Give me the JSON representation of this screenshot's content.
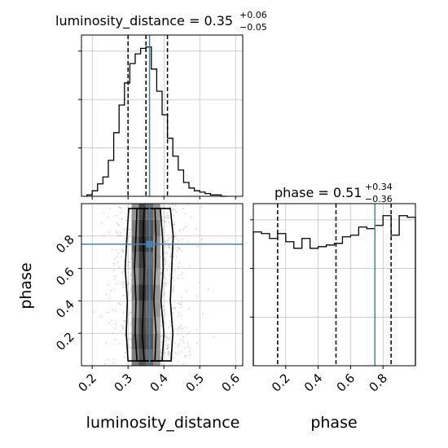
{
  "chart_data": {
    "type": "corner",
    "colors": {
      "truth": "#4682b4",
      "line": "#000000",
      "grid": "#b0b0b0",
      "scatter": "#7f7f7f"
    },
    "panels": {
      "luminosity_distance_hist": {
        "type": "histogram",
        "title_main": "luminosity_distance = 0.35",
        "title_sup": "+0.06",
        "title_sub": "−0.05",
        "xlim": [
          0.17,
          0.62
        ],
        "bin_edges": [
          0.185,
          0.2,
          0.215,
          0.23,
          0.245,
          0.26,
          0.275,
          0.29,
          0.305,
          0.32,
          0.335,
          0.35,
          0.365,
          0.38,
          0.395,
          0.41,
          0.425,
          0.44,
          0.455,
          0.47,
          0.485,
          0.5,
          0.515,
          0.53,
          0.545,
          0.56,
          0.575
        ],
        "counts": [
          1,
          4,
          9,
          14,
          26,
          46,
          66,
          82,
          96,
          103,
          107,
          108,
          92,
          76,
          59,
          42,
          29,
          19,
          10,
          6,
          4,
          3,
          2,
          1,
          1,
          0
        ],
        "quantiles": [
          0.3,
          0.35,
          0.41
        ],
        "truth": 0.36
      },
      "phase_hist": {
        "type": "histogram",
        "title_main": "phase = 0.51",
        "title_sup": "+0.34",
        "title_sub": "−0.36",
        "xlim": [
          0.0,
          1.0
        ],
        "xticks": [
          0.2,
          0.4,
          0.6,
          0.8
        ],
        "xtick_labels": [
          "0.2",
          "0.4",
          "0.6",
          "0.8"
        ],
        "xlabel": "phase",
        "bin_edges": [
          0.0,
          0.05,
          0.1,
          0.15,
          0.2,
          0.25,
          0.3,
          0.35,
          0.4,
          0.45,
          0.5,
          0.55,
          0.6,
          0.65,
          0.7,
          0.75,
          0.8,
          0.85,
          0.9,
          0.95,
          1.0
        ],
        "counts": [
          82,
          81,
          78,
          81,
          76,
          72,
          78,
          72,
          73,
          74,
          75,
          79,
          80,
          85,
          84,
          86,
          92,
          80,
          92,
          91
        ],
        "quantiles": [
          0.15,
          0.51,
          0.85
        ],
        "truth": 0.75
      },
      "joint": {
        "type": "2d-density",
        "x_param": "luminosity_distance",
        "y_param": "phase",
        "xlim": [
          0.17,
          0.62
        ],
        "ylim": [
          0.0,
          1.0
        ],
        "xticks": [
          0.2,
          0.3,
          0.4,
          0.5,
          0.6
        ],
        "xtick_labels": [
          "0.2",
          "0.3",
          "0.4",
          "0.5",
          "0.6"
        ],
        "yticks": [
          0.2,
          0.4,
          0.6,
          0.8
        ],
        "ytick_labels": [
          "0.2",
          "0.4",
          "0.6",
          "0.8"
        ],
        "xlabel": "luminosity_distance",
        "ylabel": "phase",
        "truth": [
          0.36,
          0.75
        ],
        "density_bins_x": [
          0.32,
          0.34,
          0.36,
          0.38
        ],
        "density_bins_y": [
          0.05,
          0.15,
          0.25,
          0.35,
          0.45,
          0.55,
          0.65,
          0.75,
          0.85,
          0.95
        ],
        "density_values": [
          [
            0.6,
            0.8,
            0.7,
            0.5
          ],
          [
            0.7,
            0.9,
            0.8,
            0.5
          ],
          [
            0.6,
            0.85,
            0.75,
            0.4
          ],
          [
            0.5,
            0.8,
            0.7,
            0.5
          ],
          [
            0.6,
            0.95,
            0.8,
            0.5
          ],
          [
            0.5,
            0.8,
            0.75,
            0.4
          ],
          [
            0.6,
            0.9,
            0.7,
            0.5
          ],
          [
            0.7,
            1.0,
            0.85,
            0.5
          ],
          [
            0.6,
            0.95,
            0.8,
            0.6
          ],
          [
            0.5,
            0.85,
            0.7,
            0.5
          ]
        ],
        "contours": [
          {
            "level": "inner",
            "x": [
              [
                0.345,
                0.375
              ],
              [
                0.34,
                0.378
              ],
              [
                0.343,
                0.372
              ],
              [
                0.345,
                0.376
              ],
              [
                0.342,
                0.378
              ],
              [
                0.345,
                0.375
              ]
            ],
            "y": [
              0.03,
              0.2,
              0.4,
              0.6,
              0.8,
              0.97
            ]
          },
          {
            "level": "middle",
            "x": [
              [
                0.325,
                0.395
              ],
              [
                0.32,
                0.4
              ],
              [
                0.322,
                0.392
              ],
              [
                0.318,
                0.398
              ],
              [
                0.322,
                0.396
              ],
              [
                0.325,
                0.39
              ]
            ],
            "y": [
              0.03,
              0.2,
              0.4,
              0.6,
              0.8,
              0.97
            ]
          },
          {
            "level": "outer",
            "x": [
              [
                0.3,
                0.42
              ],
              [
                0.295,
                0.425
              ],
              [
                0.298,
                0.418
              ],
              [
                0.292,
                0.422
              ],
              [
                0.297,
                0.426
              ],
              [
                0.302,
                0.418
              ]
            ],
            "y": [
              0.03,
              0.2,
              0.4,
              0.6,
              0.8,
              0.97
            ]
          }
        ],
        "scatter_x_range": [
          0.2,
          0.56
        ],
        "scatter_center": 0.36,
        "scatter_sigma": 0.055
      }
    }
  }
}
